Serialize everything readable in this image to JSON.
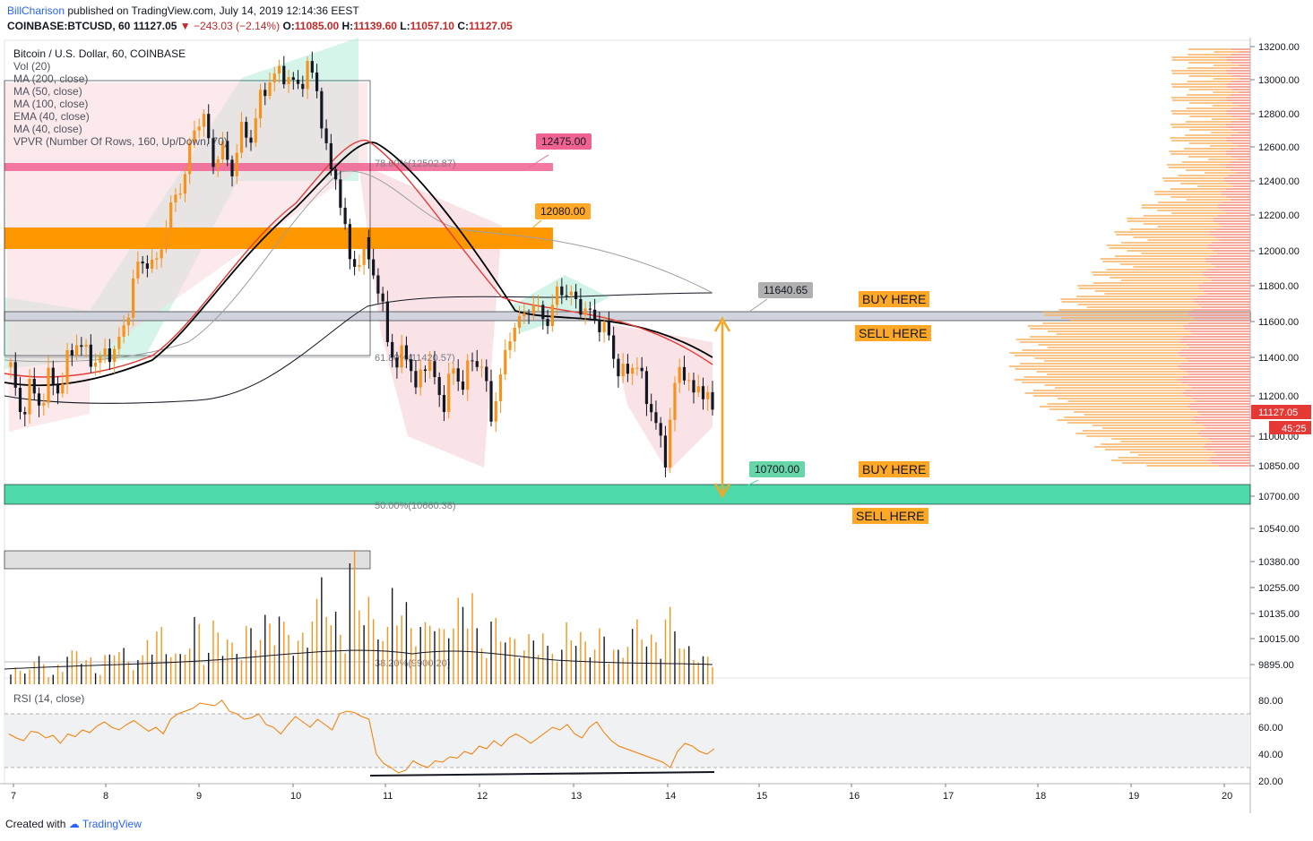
{
  "header": {
    "author": "BillCharison",
    "published_text": "published on TradingView.com, July 14, 2019 12:14:36 EEST",
    "symbol": "COINBASE:BTCUSD, 60",
    "last": "11127.05",
    "change": "−243.03 (−2.14%)",
    "o_label": "O:",
    "o": "11085.00",
    "h_label": "H:",
    "h": "11139.60",
    "l_label": "L:",
    "l": "11057.10",
    "c_label": "C:",
    "c": "11127.05"
  },
  "legend": {
    "title": "Bitcoin / U.S. Dollar, 60, COINBASE",
    "items": [
      "Vol (20)",
      "MA (200, close)",
      "MA (50, close)",
      "MA (100, close)",
      "EMA (40, close)",
      "MA (40, close)",
      "VPVR (Number Of Rows, 160, Up/Down, 70)"
    ]
  },
  "rsi_label": "RSI (14, close)",
  "footer": {
    "prefix": "Created with",
    "brand": "TradingView"
  },
  "colors": {
    "up": "#f7931a",
    "down": "#131722",
    "red_zone": "#f06292",
    "orange_zone": "#ff9800",
    "green_zone": "#4dd9a9",
    "gray_zone": "#d1d4dc",
    "ma_black": "#000000",
    "ma_red": "#e53935",
    "ma_gray": "#9e9e9e",
    "rsi_line": "#f57c00",
    "arrow": "#f5a623"
  },
  "chart_data": {
    "type": "candlestick",
    "y_axis": {
      "ticks": [
        13200,
        13000,
        12800,
        12600,
        12400,
        12200,
        12000,
        11800,
        11600,
        11400,
        11200,
        11000,
        10850,
        10700,
        10540,
        10380,
        10255,
        10135,
        10015,
        9895
      ],
      "tick_labels": [
        "13200.00",
        "13000.00",
        "12800.00",
        "12600.00",
        "12400.00",
        "12200.00",
        "12000.00",
        "11800.00",
        "11600.00",
        "11400.00",
        "11200.00",
        "11000.00",
        "10850.00",
        "10700.00",
        "10540.00",
        "10380.00",
        "10255.00",
        "10135.00",
        "10015.00",
        "9895.00"
      ],
      "last_price": "11127.05",
      "countdown": "45:25"
    },
    "x_axis": {
      "tick_labels": [
        "7",
        "8",
        "9",
        "10",
        "11",
        "12",
        "13",
        "14",
        "15",
        "16",
        "17",
        "18",
        "19",
        "20"
      ]
    },
    "price_path": [
      11350,
      11100,
      11250,
      11150,
      11300,
      11220,
      11400,
      11500,
      11400,
      11380,
      11420,
      11450,
      11600,
      11900,
      11950,
      11900,
      12100,
      12300,
      12400,
      12700,
      12800,
      12500,
      12600,
      12450,
      12700,
      12650,
      12900,
      13000,
      13050,
      13000,
      12950,
      13100,
      12900,
      12500,
      12400,
      12000,
      11900,
      12050,
      11800,
      11600,
      11300,
      11500,
      11200,
      11400,
      11300,
      11150,
      11350,
      11250,
      11400,
      11350,
      11100,
      11300,
      11550,
      11600,
      11700,
      11650,
      11600,
      11800,
      11750,
      11700,
      11650,
      11600,
      11550,
      11350,
      11300,
      11400,
      11200,
      11100,
      10850,
      11250,
      11350,
      11200,
      11250,
      11120
    ],
    "key_levels": [
      {
        "price": "12475.00",
        "label": "12475.00"
      },
      {
        "price": "12080.00",
        "label": "12080.00"
      },
      {
        "price": "11640.65",
        "label": "11640.65"
      },
      {
        "price": "10700.00",
        "label": "10700.00"
      }
    ],
    "fib_labels": [
      "78.60%(12502.87)",
      "61.80%(11420.57)",
      "50.00%(10660.38)",
      "38.20%(9900.20)"
    ],
    "zone_annotations": [
      "BUY HERE",
      "SELL HERE",
      "BUY HERE",
      "SELL HERE"
    ],
    "rsi": {
      "ticks": [
        80,
        60,
        40,
        20
      ],
      "tick_labels": [
        "80.00",
        "60.00",
        "40.00",
        "20.00"
      ],
      "upper": 70,
      "lower": 30,
      "values": [
        55,
        52,
        50,
        57,
        56,
        52,
        54,
        48,
        55,
        53,
        58,
        56,
        61,
        64,
        60,
        58,
        62,
        65,
        61,
        57,
        60,
        55,
        66,
        70,
        72,
        74,
        78,
        77,
        76,
        80,
        72,
        70,
        66,
        67,
        70,
        62,
        60,
        55,
        62,
        68,
        64,
        60,
        66,
        62,
        58,
        70,
        72,
        71,
        68,
        66,
        40,
        33,
        30,
        26,
        28,
        35,
        32,
        30,
        35,
        34,
        38,
        37,
        42,
        40,
        46,
        44,
        50,
        46,
        52,
        55,
        52,
        48,
        52,
        56,
        60,
        58,
        62,
        55,
        52,
        60,
        64,
        56,
        50,
        46,
        44,
        42,
        40,
        38,
        36,
        34,
        30,
        42,
        48,
        46,
        42,
        40,
        44
      ]
    },
    "volume": [
      20,
      14,
      25,
      30,
      10,
      22,
      35,
      40,
      28,
      15,
      32,
      45,
      38,
      26,
      30,
      55,
      60,
      42,
      33,
      48,
      70,
      38,
      66,
      50,
      44,
      36,
      62,
      58,
      72,
      80,
      65,
      48,
      55,
      90,
      120,
      75,
      60,
      140,
      100,
      95,
      70,
      60,
      110,
      85,
      70,
      65,
      82,
      60,
      75,
      90,
      110,
      58,
      46,
      70,
      62,
      50,
      44,
      52,
      60,
      40,
      38,
      66,
      55,
      48,
      44,
      58,
      40,
      36,
      60,
      70,
      52,
      48,
      80,
      66,
      40,
      34,
      30,
      28
    ]
  }
}
